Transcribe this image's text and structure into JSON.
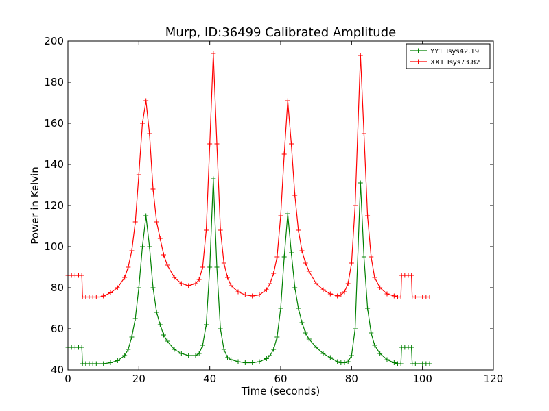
{
  "chart_data": {
    "type": "line",
    "title": "Murp, ID:36499 Calibrated Amplitude",
    "xlabel": "Time (seconds)",
    "ylabel": "Power in Kelvin",
    "xlim": [
      0,
      120
    ],
    "ylim": [
      40,
      200
    ],
    "xticks": [
      0,
      20,
      40,
      60,
      80,
      100,
      120
    ],
    "yticks": [
      40,
      60,
      80,
      100,
      120,
      140,
      160,
      180,
      200
    ],
    "legend_position": "top-right",
    "grid": false,
    "marker": "+",
    "series": [
      {
        "name": "YY1 Tsys42.19",
        "color": "#008000",
        "x": [
          0,
          1,
          2,
          3,
          3.9,
          4.1,
          5,
          6,
          7,
          8,
          9,
          10,
          12,
          14,
          16,
          17,
          18,
          19,
          20,
          21,
          22,
          23,
          24,
          25,
          26,
          27,
          28,
          30,
          32,
          34,
          36,
          37,
          38,
          39,
          40,
          41,
          42,
          43,
          44,
          45,
          46,
          48,
          50,
          52,
          54,
          56,
          57,
          58,
          59,
          60,
          61,
          62,
          63,
          64,
          65,
          66,
          67,
          68,
          70,
          72,
          74,
          76,
          77,
          78,
          79,
          80,
          81,
          82.5,
          83.5,
          84.5,
          85.5,
          86.5,
          88,
          90,
          92,
          93,
          93.9,
          94.1,
          95,
          96,
          96.9,
          97.1,
          98,
          99,
          100,
          101,
          102
        ],
        "values": [
          51,
          51,
          51,
          51,
          51,
          43,
          43,
          43,
          43,
          43,
          43,
          43,
          43.5,
          44.5,
          47,
          50,
          56,
          65,
          80,
          100,
          115,
          100,
          80,
          68,
          62,
          57,
          54,
          50,
          48,
          47,
          47,
          48,
          52,
          62,
          90,
          133,
          90,
          60,
          50,
          46,
          45,
          44,
          43.5,
          43.5,
          44,
          45.5,
          47,
          50,
          56,
          70,
          95,
          116,
          97,
          80,
          70,
          63,
          58,
          55,
          51,
          48,
          46,
          44,
          43.5,
          43.5,
          44,
          47,
          60,
          131,
          95,
          70,
          58,
          52,
          48,
          45,
          43.5,
          43,
          43,
          51,
          51,
          51,
          51,
          43,
          43,
          43,
          43,
          43,
          43
        ]
      },
      {
        "name": "XX1 Tsys73.82",
        "color": "#ff0000",
        "x": [
          0,
          1,
          2,
          3,
          3.9,
          4.1,
          5,
          6,
          7,
          8,
          9,
          10,
          12,
          14,
          16,
          17,
          18,
          19,
          20,
          21,
          22,
          23,
          24,
          25,
          26,
          27,
          28,
          30,
          32,
          34,
          36,
          37,
          38,
          39,
          40,
          41,
          42,
          43,
          44,
          45,
          46,
          48,
          50,
          52,
          54,
          56,
          57,
          58,
          59,
          60,
          61,
          62,
          63,
          64,
          65,
          66,
          67,
          68,
          70,
          72,
          74,
          76,
          77,
          78,
          79,
          80,
          81,
          82.5,
          83.5,
          84.5,
          85.5,
          86.5,
          88,
          90,
          92,
          93,
          93.9,
          94.1,
          95,
          96,
          96.9,
          97.1,
          98,
          99,
          100,
          101,
          102
        ],
        "values": [
          86,
          86,
          86,
          86,
          86,
          75.5,
          75.5,
          75.5,
          75.5,
          75.5,
          75.5,
          76,
          77.5,
          80,
          85,
          90,
          98,
          112,
          135,
          160,
          171,
          155,
          128,
          112,
          104,
          96,
          91,
          85,
          82,
          81,
          82,
          84,
          90,
          108,
          150,
          194,
          150,
          108,
          92,
          85,
          81,
          78,
          76.5,
          76,
          76.5,
          79,
          82,
          87,
          95,
          115,
          145,
          171,
          150,
          125,
          108,
          98,
          92,
          88,
          82,
          79,
          77,
          76,
          76.5,
          78,
          82,
          92,
          120,
          193,
          155,
          115,
          95,
          85,
          80,
          77,
          76,
          75.5,
          75.5,
          86,
          86,
          86,
          86,
          75.5,
          75.5,
          75.5,
          75.5,
          75.5,
          75.5
        ]
      }
    ]
  }
}
